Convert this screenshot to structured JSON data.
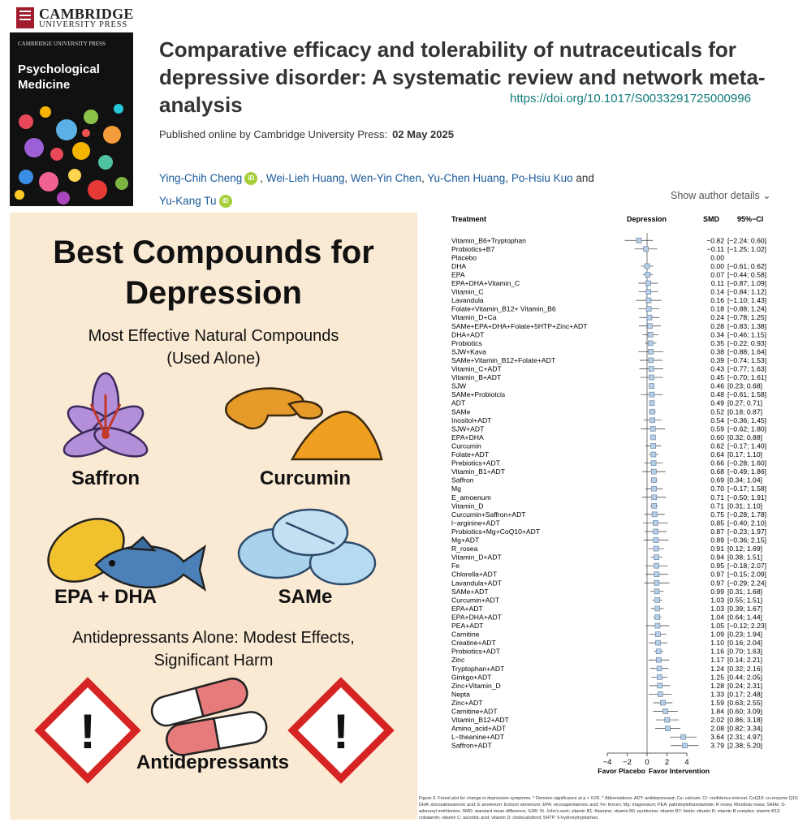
{
  "publisher": {
    "line1": "CAMBRIDGE",
    "line2": "UNIVERSITY PRESS"
  },
  "cover": {
    "press": "CAMBRIDGE UNIVERSITY PRESS",
    "journal": "Psychological Medicine"
  },
  "article": {
    "title": "Comparative efficacy and tolerability of nutraceuticals for depressive disorder: A systematic review and network meta-analysis",
    "doi": "https://doi.org/10.1017/S0033291725000996",
    "published_label": "Published online by Cambridge University Press:",
    "published_date": "02 May 2025",
    "authors": [
      "Ying-Chih Cheng",
      "Wei-Lieh Huang",
      "Wen-Yin Chen",
      "Yu-Chen Huang",
      "Po-Hsiu Kuo",
      "Yu-Kang Tu"
    ],
    "and": "and",
    "orcid_label": "iD",
    "show_author_details": "Show author details"
  },
  "infographic": {
    "title": "Best Compounds for Depression",
    "subtitle_line1": "Most Effective Natural Compounds",
    "subtitle_line2": "(Used Alone)",
    "compounds": [
      "Saffron",
      "Curcumin",
      "EPA + DHA",
      "SAMe"
    ],
    "warning_line1": "Antidepressants Alone: Modest Effects,",
    "warning_line2": "Significant Harm",
    "antidepressants_label": "Antidepressants",
    "warning_glyph": "!"
  },
  "chart_data": {
    "type": "forest",
    "headers": {
      "treatment": "Treatment",
      "outcome": "Depression",
      "smd": "SMD",
      "ci": "95%−CI"
    },
    "xlim": [
      -4,
      4
    ],
    "xticks": [
      -4,
      -2,
      0,
      2,
      4
    ],
    "xlabel_left": "Favor Placebo",
    "xlabel_right": "Favor Intervention",
    "rows": [
      {
        "name": "Vitamin_B6+Tryptophan",
        "smd": -0.82,
        "lo": -2.24,
        "hi": 0.6
      },
      {
        "name": "Probiotics+B7",
        "smd": -0.11,
        "lo": -1.25,
        "hi": 1.02
      },
      {
        "name": "Placebo",
        "smd": 0.0,
        "lo": null,
        "hi": null
      },
      {
        "name": "DHA",
        "smd": 0.0,
        "lo": -0.61,
        "hi": 0.62
      },
      {
        "name": "EPA",
        "smd": 0.07,
        "lo": -0.44,
        "hi": 0.58
      },
      {
        "name": "EPA+DHA+Vitamin_C",
        "smd": 0.11,
        "lo": -0.87,
        "hi": 1.09
      },
      {
        "name": "Vitamin_C",
        "smd": 0.14,
        "lo": -0.84,
        "hi": 1.12
      },
      {
        "name": "Lavandula",
        "smd": 0.16,
        "lo": -1.1,
        "hi": 1.43
      },
      {
        "name": "Folate+Vitamin_B12+ Vitamin_B6",
        "smd": 0.18,
        "lo": -0.88,
        "hi": 1.24
      },
      {
        "name": "Vitamin_D+Ca",
        "smd": 0.24,
        "lo": -0.78,
        "hi": 1.25
      },
      {
        "name": "SAMe+EPA+DHA+Folate+5HTP+Zinc+ADT",
        "smd": 0.28,
        "lo": -0.83,
        "hi": 1.38
      },
      {
        "name": "DHA+ADT",
        "smd": 0.34,
        "lo": -0.46,
        "hi": 1.15
      },
      {
        "name": "Probiotics",
        "smd": 0.35,
        "lo": -0.22,
        "hi": 0.93
      },
      {
        "name": "SJW+Kava",
        "smd": 0.38,
        "lo": -0.88,
        "hi": 1.64
      },
      {
        "name": "SAMe+Vitamin_B12+Folate+ADT",
        "smd": 0.39,
        "lo": -0.74,
        "hi": 1.53
      },
      {
        "name": "Vitamin_C+ADT",
        "smd": 0.43,
        "lo": -0.77,
        "hi": 1.63
      },
      {
        "name": "Vitamin_B+ADT",
        "smd": 0.45,
        "lo": -0.7,
        "hi": 1.61
      },
      {
        "name": "SJW",
        "smd": 0.46,
        "lo": 0.23,
        "hi": 0.68
      },
      {
        "name": "SAMe+Probiotcis",
        "smd": 0.48,
        "lo": -0.61,
        "hi": 1.58
      },
      {
        "name": "ADT",
        "smd": 0.49,
        "lo": 0.27,
        "hi": 0.71
      },
      {
        "name": "SAMe",
        "smd": 0.52,
        "lo": 0.18,
        "hi": 0.87
      },
      {
        "name": "Inositol+ADT",
        "smd": 0.54,
        "lo": -0.36,
        "hi": 1.45
      },
      {
        "name": "SJW+ADT",
        "smd": 0.59,
        "lo": -0.62,
        "hi": 1.8
      },
      {
        "name": "EPA+DHA",
        "smd": 0.6,
        "lo": 0.32,
        "hi": 0.88
      },
      {
        "name": "Curcumin",
        "smd": 0.62,
        "lo": -0.17,
        "hi": 1.4
      },
      {
        "name": "Folate+ADT",
        "smd": 0.64,
        "lo": 0.17,
        "hi": 1.1
      },
      {
        "name": "Prebiotics+ADT",
        "smd": 0.66,
        "lo": -0.28,
        "hi": 1.6
      },
      {
        "name": "Vitamin_B1+ADT",
        "smd": 0.68,
        "lo": -0.49,
        "hi": 1.86
      },
      {
        "name": "Saffron",
        "smd": 0.69,
        "lo": 0.34,
        "hi": 1.04
      },
      {
        "name": "Mg",
        "smd": 0.7,
        "lo": -0.17,
        "hi": 1.58
      },
      {
        "name": "E_amoenum",
        "smd": 0.71,
        "lo": -0.5,
        "hi": 1.91
      },
      {
        "name": "Vitamin_D",
        "smd": 0.71,
        "lo": 0.31,
        "hi": 1.1
      },
      {
        "name": "Curcumin+Saffron+ADT",
        "smd": 0.75,
        "lo": -0.28,
        "hi": 1.78
      },
      {
        "name": "l−arginine+ADT",
        "smd": 0.85,
        "lo": -0.4,
        "hi": 2.1
      },
      {
        "name": "Probiotics+Mg+CoQ10+ADT",
        "smd": 0.87,
        "lo": -0.23,
        "hi": 1.97
      },
      {
        "name": "Mg+ADT",
        "smd": 0.89,
        "lo": -0.36,
        "hi": 2.15
      },
      {
        "name": "R_rosea",
        "smd": 0.91,
        "lo": 0.12,
        "hi": 1.69
      },
      {
        "name": "Vitamin_D+ADT",
        "smd": 0.94,
        "lo": 0.38,
        "hi": 1.51
      },
      {
        "name": "Fe",
        "smd": 0.95,
        "lo": -0.18,
        "hi": 2.07
      },
      {
        "name": "Chlorella+ADT",
        "smd": 0.97,
        "lo": -0.15,
        "hi": 2.09
      },
      {
        "name": "Lavandula+ADT",
        "smd": 0.97,
        "lo": -0.29,
        "hi": 2.24
      },
      {
        "name": "SAMe+ADT",
        "smd": 0.99,
        "lo": 0.31,
        "hi": 1.68
      },
      {
        "name": "Curcumin+ADT",
        "smd": 1.03,
        "lo": 0.55,
        "hi": 1.51
      },
      {
        "name": "EPA+ADT",
        "smd": 1.03,
        "lo": 0.39,
        "hi": 1.67
      },
      {
        "name": "EPA+DHA+ADT",
        "smd": 1.04,
        "lo": 0.64,
        "hi": 1.44
      },
      {
        "name": "PEA+ADT",
        "smd": 1.05,
        "lo": -0.12,
        "hi": 2.23
      },
      {
        "name": "Carnitine",
        "smd": 1.09,
        "lo": 0.23,
        "hi": 1.94
      },
      {
        "name": "Creatine+ADT",
        "smd": 1.1,
        "lo": 0.16,
        "hi": 2.04
      },
      {
        "name": "Probiotics+ADT",
        "smd": 1.16,
        "lo": 0.7,
        "hi": 1.63
      },
      {
        "name": "Zinc",
        "smd": 1.17,
        "lo": 0.14,
        "hi": 2.21
      },
      {
        "name": "Tryptophan+ADT",
        "smd": 1.24,
        "lo": 0.32,
        "hi": 2.16
      },
      {
        "name": "Ginkgo+ADT",
        "smd": 1.25,
        "lo": 0.44,
        "hi": 2.05
      },
      {
        "name": "Zinc+Vitamin_D",
        "smd": 1.28,
        "lo": 0.24,
        "hi": 2.31
      },
      {
        "name": "Nepta",
        "smd": 1.33,
        "lo": 0.17,
        "hi": 2.48
      },
      {
        "name": "Zinc+ADT",
        "smd": 1.59,
        "lo": 0.63,
        "hi": 2.55
      },
      {
        "name": "Carnitine+ADT",
        "smd": 1.84,
        "lo": 0.6,
        "hi": 3.09
      },
      {
        "name": "Vitamin_B12+ADT",
        "smd": 2.02,
        "lo": 0.86,
        "hi": 3.18
      },
      {
        "name": "Amino_acid+ADT",
        "smd": 2.08,
        "lo": 0.82,
        "hi": 3.34
      },
      {
        "name": "L−theanine+ADT",
        "smd": 3.64,
        "lo": 2.31,
        "hi": 4.97
      },
      {
        "name": "Saffron+ADT",
        "smd": 3.79,
        "lo": 2.38,
        "hi": 5.2
      }
    ]
  },
  "caption": "Figure 3. Forest plot for change in depressive symptoms. * Denotes significance at p < 0.05. * Abbreviations: ADT: antidepressant; Ca: calcium; CI: confidence interval; CoQ10: co-enzyme Q10; DHA: docosahexaenoic acid; E amoenum: Echium amoenum; EPA: eicosapentaenoic acid; Fe: ferrum; Mg: magnesium; PEA: palmitoylethanolamide; R rosea: Rhodiola rosea; SAMe: S-adenosyl methionine; SMD: standard mean difference; SJW: St. John's wort; vitamin B1: thiamine; vitamin B6: pyridoxine; vitamin B7: biotin; vitamin B: vitamin B complex; vitamin B12: cobalamin; vitamin C: ascorbic acid; vitamin D: cholecalciferol; 5HTP: 5-hydroxytryptophan."
}
